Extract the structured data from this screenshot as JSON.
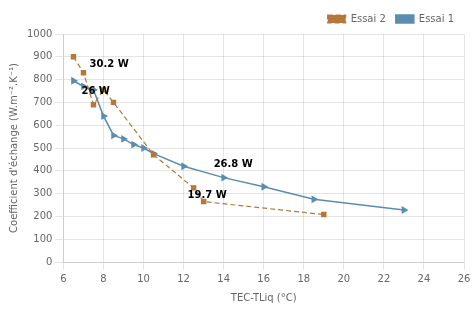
{
  "chart_data": {
    "type": "line",
    "xlabel": "TEC-TLiq (°C)",
    "ylabel": "Coefficient d'échange (W.m⁻².K⁻¹)",
    "xlim": [
      6,
      26
    ],
    "ylim": [
      0,
      1000
    ],
    "xticks": [
      6,
      8,
      10,
      12,
      14,
      16,
      18,
      20,
      22,
      24,
      26
    ],
    "yticks": [
      0,
      100,
      200,
      300,
      400,
      500,
      600,
      700,
      800,
      900,
      1000
    ],
    "series": [
      {
        "name": "Essai 2",
        "color": "#b5783a",
        "marker": "square",
        "line_style": "dashed",
        "x": [
          6.5,
          7.0,
          7.5,
          8.0,
          8.5,
          10.5,
          12.5,
          13.0,
          19.0
        ],
        "values": [
          900,
          830,
          690,
          755,
          700,
          470,
          325,
          265,
          208
        ]
      },
      {
        "name": "Essai 1",
        "color": "#5b8db0",
        "marker": "triangle_right",
        "line_style": "solid",
        "x": [
          6.5,
          7.0,
          7.5,
          8.0,
          8.5,
          9.0,
          9.5,
          10.0,
          10.5,
          12.0,
          14.0,
          16.0,
          18.5,
          23.0
        ],
        "values": [
          795,
          770,
          755,
          640,
          555,
          540,
          515,
          500,
          475,
          420,
          370,
          330,
          275,
          228
        ]
      }
    ],
    "annotations": [
      {
        "text": "30.2 W",
        "x": 7.3,
        "y": 855
      },
      {
        "text": "26 W",
        "x": 6.9,
        "y": 735
      },
      {
        "text": "26.8 W",
        "x": 13.5,
        "y": 415
      },
      {
        "text": "19.7 W",
        "x": 12.2,
        "y": 280
      }
    ],
    "grid": true,
    "legend": "upper right"
  }
}
